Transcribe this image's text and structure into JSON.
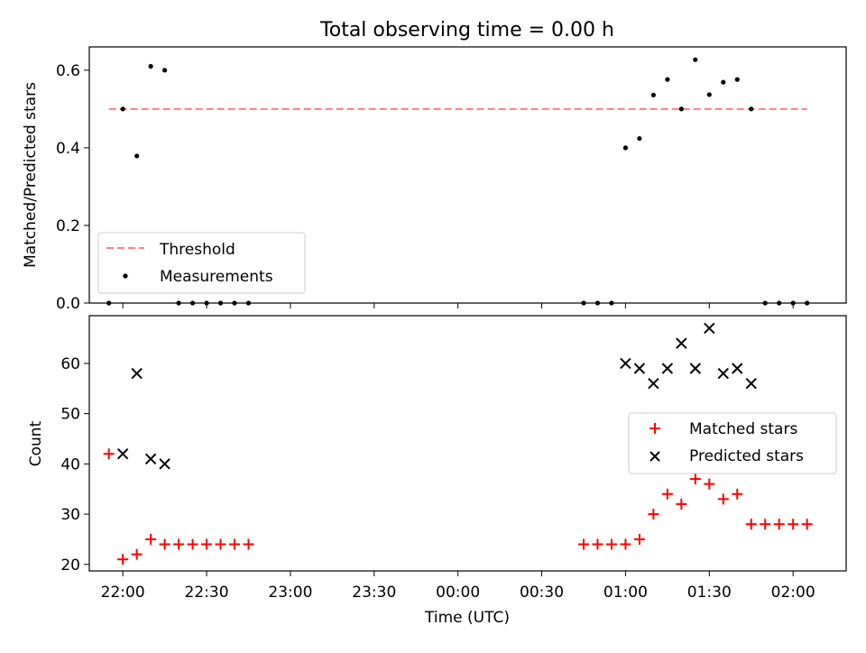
{
  "chart_data": [
    {
      "type": "scatter",
      "title": "Total observing time = 0.00 h",
      "xlabel": "",
      "ylabel": "Matched/Predicted stars",
      "xlim": [
        "21:48",
        "02:19"
      ],
      "ylim": [
        0,
        0.66
      ],
      "yticks": [
        "0.0",
        "0.2",
        "0.4",
        "0.6"
      ],
      "legend": {
        "position": "lower-left"
      },
      "series": [
        {
          "name": "Threshold",
          "style": "dashed-line",
          "color": "#ff7f7f",
          "points": [
            {
              "x": "21:55",
              "y": 0.5
            },
            {
              "x": "02:05",
              "y": 0.5
            }
          ]
        },
        {
          "name": "Measurements",
          "style": "dot",
          "color": "#000000",
          "points": [
            {
              "x": "21:55",
              "y": 0.0
            },
            {
              "x": "22:00",
              "y": 0.5
            },
            {
              "x": "22:05",
              "y": 0.379
            },
            {
              "x": "22:10",
              "y": 0.61
            },
            {
              "x": "22:15",
              "y": 0.6
            },
            {
              "x": "22:20",
              "y": 0.0
            },
            {
              "x": "22:25",
              "y": 0.0
            },
            {
              "x": "22:30",
              "y": 0.0
            },
            {
              "x": "22:35",
              "y": 0.0
            },
            {
              "x": "22:40",
              "y": 0.0
            },
            {
              "x": "22:45",
              "y": 0.0
            },
            {
              "x": "00:45",
              "y": 0.0
            },
            {
              "x": "00:50",
              "y": 0.0
            },
            {
              "x": "00:55",
              "y": 0.0
            },
            {
              "x": "01:00",
              "y": 0.4
            },
            {
              "x": "01:05",
              "y": 0.424
            },
            {
              "x": "01:10",
              "y": 0.536
            },
            {
              "x": "01:15",
              "y": 0.576
            },
            {
              "x": "01:20",
              "y": 0.5
            },
            {
              "x": "01:25",
              "y": 0.627
            },
            {
              "x": "01:30",
              "y": 0.537
            },
            {
              "x": "01:35",
              "y": 0.569
            },
            {
              "x": "01:40",
              "y": 0.576
            },
            {
              "x": "01:45",
              "y": 0.5
            },
            {
              "x": "01:50",
              "y": 0.0
            },
            {
              "x": "01:55",
              "y": 0.0
            },
            {
              "x": "02:00",
              "y": 0.0
            },
            {
              "x": "02:05",
              "y": 0.0
            }
          ]
        }
      ]
    },
    {
      "type": "scatter",
      "title": "",
      "xlabel": "Time (UTC)",
      "ylabel": "Count",
      "xlim": [
        "21:48",
        "02:19"
      ],
      "xticks": [
        "22:00",
        "22:30",
        "23:00",
        "23:30",
        "00:00",
        "00:30",
        "01:00",
        "01:30",
        "02:00"
      ],
      "ylim": [
        18.7,
        69.5
      ],
      "yticks": [
        "20",
        "30",
        "40",
        "50",
        "60"
      ],
      "legend": {
        "position": "right"
      },
      "series": [
        {
          "name": "Matched stars",
          "style": "plus",
          "color": "#ff0000",
          "points": [
            {
              "x": "21:55",
              "y": 42
            },
            {
              "x": "22:00",
              "y": 21
            },
            {
              "x": "22:05",
              "y": 22
            },
            {
              "x": "22:10",
              "y": 25
            },
            {
              "x": "22:15",
              "y": 24
            },
            {
              "x": "22:20",
              "y": 24
            },
            {
              "x": "22:25",
              "y": 24
            },
            {
              "x": "22:30",
              "y": 24
            },
            {
              "x": "22:35",
              "y": 24
            },
            {
              "x": "22:40",
              "y": 24
            },
            {
              "x": "22:45",
              "y": 24
            },
            {
              "x": "00:45",
              "y": 24
            },
            {
              "x": "00:50",
              "y": 24
            },
            {
              "x": "00:55",
              "y": 24
            },
            {
              "x": "01:00",
              "y": 24
            },
            {
              "x": "01:05",
              "y": 25
            },
            {
              "x": "01:10",
              "y": 30
            },
            {
              "x": "01:15",
              "y": 34
            },
            {
              "x": "01:20",
              "y": 32
            },
            {
              "x": "01:25",
              "y": 37
            },
            {
              "x": "01:30",
              "y": 36
            },
            {
              "x": "01:35",
              "y": 33
            },
            {
              "x": "01:40",
              "y": 34
            },
            {
              "x": "01:45",
              "y": 28
            },
            {
              "x": "01:50",
              "y": 28
            },
            {
              "x": "01:55",
              "y": 28
            },
            {
              "x": "02:00",
              "y": 28
            },
            {
              "x": "02:05",
              "y": 28
            }
          ]
        },
        {
          "name": "Predicted stars",
          "style": "x",
          "color": "#000000",
          "points": [
            {
              "x": "22:00",
              "y": 42
            },
            {
              "x": "22:05",
              "y": 58
            },
            {
              "x": "22:10",
              "y": 41
            },
            {
              "x": "22:15",
              "y": 40
            },
            {
              "x": "01:00",
              "y": 60
            },
            {
              "x": "01:05",
              "y": 59
            },
            {
              "x": "01:10",
              "y": 56
            },
            {
              "x": "01:15",
              "y": 59
            },
            {
              "x": "01:20",
              "y": 64
            },
            {
              "x": "01:25",
              "y": 59
            },
            {
              "x": "01:30",
              "y": 67
            },
            {
              "x": "01:35",
              "y": 58
            },
            {
              "x": "01:40",
              "y": 59
            },
            {
              "x": "01:45",
              "y": 56
            }
          ]
        }
      ]
    }
  ]
}
